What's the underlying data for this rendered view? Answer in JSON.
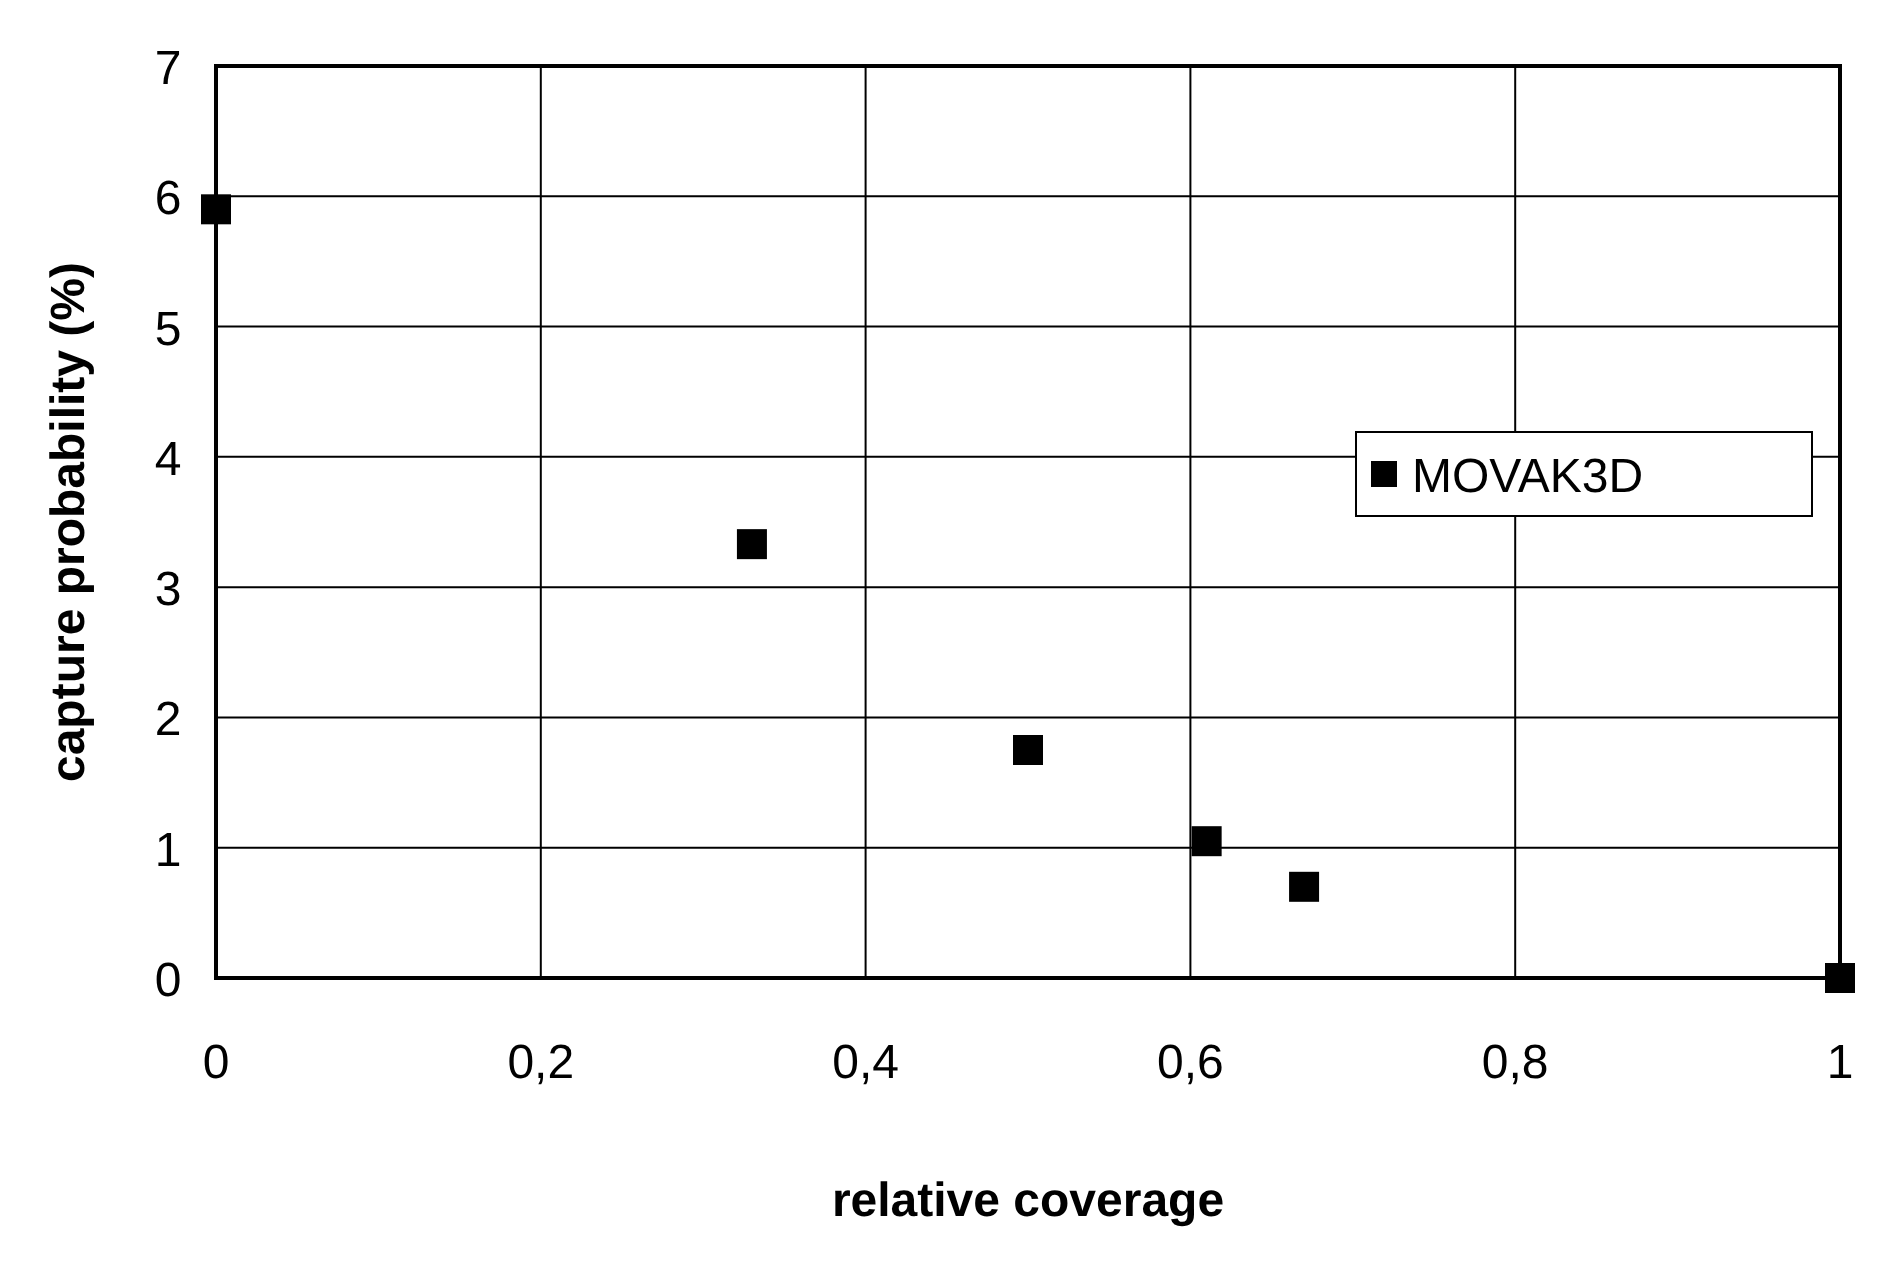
{
  "chart_data": {
    "type": "scatter",
    "xlabel": "relative coverage",
    "ylabel": "capture probability (%)",
    "x": [
      0,
      0.33,
      0.5,
      0.61,
      0.67,
      1
    ],
    "series": [
      {
        "name": "MOVAK3D",
        "color": "#000000",
        "values": [
          5.9,
          3.33,
          1.75,
          1.05,
          0.7,
          0
        ]
      }
    ],
    "xlim": [
      0,
      1
    ],
    "ylim": [
      0,
      7
    ],
    "xticks": [
      0,
      {
        "value": 0.2,
        "label": "0,2"
      },
      {
        "value": 0.4,
        "label": "0,4"
      },
      {
        "value": 0.6,
        "label": "0,6"
      },
      {
        "value": 0.8,
        "label": "0,8"
      },
      1
    ],
    "yticks": [
      0,
      1,
      2,
      3,
      4,
      5,
      6,
      7
    ],
    "grid": true,
    "legend": "right",
    "marker": "square"
  }
}
